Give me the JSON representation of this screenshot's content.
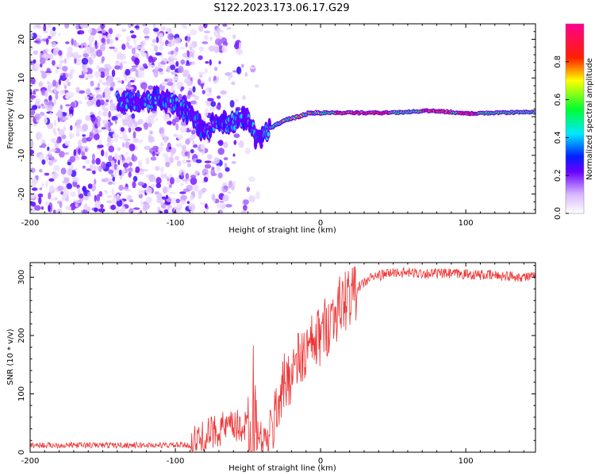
{
  "title": "S122.2023.173.06.17.G29",
  "chart_data": [
    {
      "type": "heatmap",
      "xlabel": "Height of straight line (km)",
      "ylabel": "Frequency (Hz)",
      "xlim": [
        -200,
        148
      ],
      "ylim": [
        -25,
        24
      ],
      "xticks": [
        "-200",
        "-100",
        "0",
        "100"
      ],
      "yticks": [
        "20",
        "10",
        "0",
        "-10",
        "-20"
      ],
      "colorbar": {
        "label": "Normalized spectral amplitude",
        "range": [
          0.0,
          1.0
        ],
        "ticks": [
          "0.0",
          "0.2",
          "0.4",
          "0.6",
          "0.8"
        ],
        "stops": [
          {
            "v": 0.0,
            "color": "#ffffff"
          },
          {
            "v": 0.1,
            "color": "#d8b8ff"
          },
          {
            "v": 0.22,
            "color": "#6a00ff"
          },
          {
            "v": 0.3,
            "color": "#0020ff"
          },
          {
            "v": 0.42,
            "color": "#00e8ff"
          },
          {
            "v": 0.55,
            "color": "#00ff30"
          },
          {
            "v": 0.7,
            "color": "#ffff00"
          },
          {
            "v": 0.82,
            "color": "#ff2000"
          },
          {
            "v": 1.0,
            "color": "#ff0090"
          }
        ]
      },
      "ridge": [
        {
          "x": -135,
          "y": 4
        },
        {
          "x": -120,
          "y": 4
        },
        {
          "x": -110,
          "y": 5
        },
        {
          "x": -100,
          "y": 3
        },
        {
          "x": -90,
          "y": 1
        },
        {
          "x": -80,
          "y": -4
        },
        {
          "x": -70,
          "y": -1
        },
        {
          "x": -62,
          "y": -2
        },
        {
          "x": -55,
          "y": 0
        },
        {
          "x": -50,
          "y": -1
        },
        {
          "x": -45,
          "y": -5
        },
        {
          "x": -42,
          "y": -6
        },
        {
          "x": -35,
          "y": -3
        },
        {
          "x": -25,
          "y": -1
        },
        {
          "x": -15,
          "y": 0
        },
        {
          "x": -8,
          "y": 1
        },
        {
          "x": 0,
          "y": 1
        },
        {
          "x": 50,
          "y": 1
        },
        {
          "x": 75,
          "y": 1.5
        },
        {
          "x": 90,
          "y": 1.2
        },
        {
          "x": 100,
          "y": 0.8
        },
        {
          "x": 148,
          "y": 1.2
        }
      ]
    },
    {
      "type": "line",
      "xlabel": "Height of straight line (km)",
      "ylabel": "SNR (10 * v/v)",
      "xlim": [
        -200,
        148
      ],
      "ylim": [
        0,
        325
      ],
      "xticks": [
        "-200",
        "-100",
        "0",
        "100"
      ],
      "yticks": [
        "300",
        "200",
        "100",
        "0"
      ],
      "color": "#ee3333",
      "trend": [
        {
          "x": -200,
          "y": 12
        },
        {
          "x": -90,
          "y": 12
        },
        {
          "x": -80,
          "y": 25
        },
        {
          "x": -70,
          "y": 40
        },
        {
          "x": -50,
          "y": 45
        },
        {
          "x": -40,
          "y": 20
        },
        {
          "x": -35,
          "y": 20
        },
        {
          "x": -28,
          "y": 100
        },
        {
          "x": -20,
          "y": 140
        },
        {
          "x": -10,
          "y": 170
        },
        {
          "x": 0,
          "y": 200
        },
        {
          "x": 10,
          "y": 240
        },
        {
          "x": 20,
          "y": 270
        },
        {
          "x": 35,
          "y": 300
        },
        {
          "x": 50,
          "y": 308
        },
        {
          "x": 100,
          "y": 305
        },
        {
          "x": 148,
          "y": 300
        }
      ]
    }
  ]
}
